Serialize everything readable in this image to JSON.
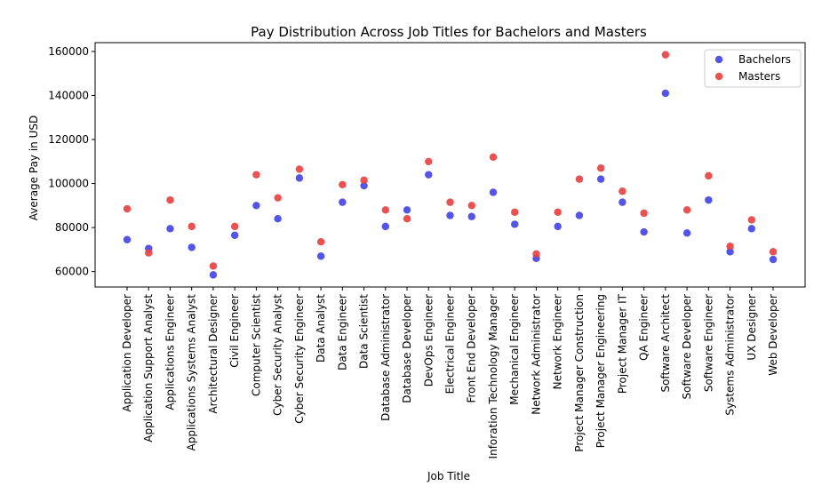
{
  "chart_data": {
    "type": "scatter",
    "title": "Pay Distribution Across Job Titles for Bachelors and Masters",
    "xlabel": "Job Title",
    "ylabel": "Average Pay in USD",
    "ylim": [
      53000,
      164000
    ],
    "yticks": [
      "60000",
      "80000",
      "100000",
      "120000",
      "140000",
      "160000"
    ],
    "ytick_values": [
      60000,
      80000,
      100000,
      120000,
      140000,
      160000
    ],
    "grid": false,
    "legend_position": "top-right",
    "categories": [
      "Application Developer",
      "Application Support Analyst",
      "Applications Engineer",
      "Applications Systems Analyst",
      "Architectural Designer",
      "Civil Engineer",
      "Computer Scientist",
      "Cyber Security Analyst",
      "Cyber Security Engineer",
      "Data Analyst",
      "Data Engineer",
      "Data Scientist",
      "Database Administrator",
      "Database Developer",
      "DevOps Engineer",
      "Electrical Engineer",
      "Front End Developer",
      "Inforation Technology Manager",
      "Mechanical Engineer",
      "Network Administrator",
      "Network Engineer",
      "Project Manager Construction",
      "Project Manager Engineering",
      "Project Manager IT",
      "QA Engineer",
      "Software Architect",
      "Software Developer",
      "Software Engineer",
      "Systems Administrator",
      "UX Designer",
      "Web Developer"
    ],
    "series": [
      {
        "name": "Bachelors",
        "color": "#4040f0",
        "values": [
          74500,
          70500,
          79500,
          71000,
          58500,
          76500,
          90000,
          84000,
          102500,
          67000,
          91500,
          99000,
          80500,
          88000,
          104000,
          85500,
          85000,
          96000,
          81500,
          66000,
          80500,
          85500,
          102000,
          91500,
          78000,
          141000,
          77500,
          92500,
          69000,
          79500,
          65500
        ]
      },
      {
        "name": "Masters",
        "color": "#f03c3c",
        "values": [
          88500,
          68500,
          92500,
          80500,
          62500,
          80500,
          104000,
          93500,
          106500,
          73500,
          99500,
          101500,
          88000,
          84000,
          110000,
          91500,
          90000,
          112000,
          87000,
          68000,
          87000,
          102000,
          107000,
          96500,
          86500,
          158500,
          88000,
          103500,
          71500,
          83500,
          69000
        ]
      }
    ]
  }
}
